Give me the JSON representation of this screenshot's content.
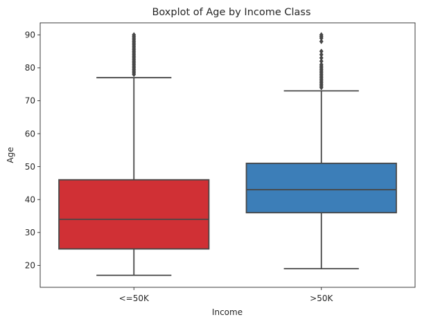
{
  "chart_data": {
    "type": "boxplot",
    "title": "Boxplot of Age by Income Class",
    "xlabel": "Income",
    "ylabel": "Age",
    "ylim": [
      13.35,
      93.65
    ],
    "yticks": [
      20,
      30,
      40,
      50,
      60,
      70,
      80,
      90
    ],
    "categories": [
      "<=50K",
      ">50K"
    ],
    "line_color": "#474747",
    "boxes": [
      {
        "category": "<=50K",
        "color": "#d03035",
        "whisker_low": 17,
        "q1": 25,
        "median": 34,
        "q3": 46,
        "whisker_high": 77,
        "outliers": [
          78,
          78.5,
          79,
          79.5,
          80,
          80.5,
          81,
          81.5,
          82,
          82.5,
          83,
          83.5,
          84,
          84.5,
          85,
          85.5,
          86,
          86.5,
          87,
          87.5,
          88,
          88.5,
          89,
          89.5,
          90
        ]
      },
      {
        "category": ">50K",
        "color": "#3c7eb8",
        "whisker_low": 19,
        "q1": 36,
        "median": 43,
        "q3": 51,
        "whisker_high": 73,
        "outliers": [
          74,
          74.5,
          75,
          75.5,
          76,
          76.5,
          77,
          77.5,
          78,
          78.5,
          79,
          79.5,
          80,
          80.5,
          81,
          82,
          83,
          84,
          85,
          88,
          89,
          89.5,
          90
        ]
      }
    ]
  }
}
